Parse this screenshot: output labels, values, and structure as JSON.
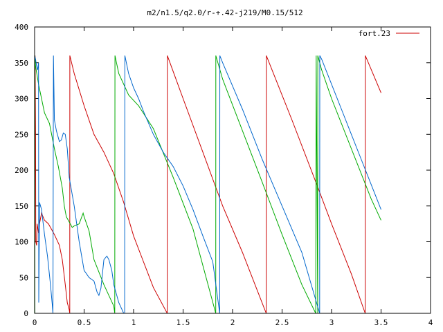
{
  "chart_data": {
    "type": "line",
    "title": "m2/n1.5/q2.0/r-+.42-j219/M0.15/512",
    "xlabel": "",
    "ylabel": "",
    "xlim": [
      0,
      4
    ],
    "ylim": [
      0,
      400
    ],
    "grid": false,
    "legend": {
      "position": "top-right",
      "entries": [
        "fort.23"
      ]
    },
    "x_ticks": [
      0,
      0.5,
      1,
      1.5,
      2,
      2.5,
      3,
      3.5,
      4
    ],
    "x_tick_labels": [
      "0",
      "0.5",
      "1",
      "1.5",
      "2",
      "2.5",
      "3",
      "3.5",
      "4"
    ],
    "y_ticks": [
      0,
      50,
      100,
      150,
      200,
      250,
      300,
      350,
      400
    ],
    "y_tick_labels": [
      "0",
      "50",
      "100",
      "150",
      "200",
      "250",
      "300",
      "350",
      "400"
    ],
    "series": [
      {
        "name": "fort.23",
        "color": "#cc0000",
        "x": [
          0.0,
          0.005,
          0.01,
          0.012,
          0.02,
          0.025,
          0.04,
          0.05,
          0.07,
          0.1,
          0.14,
          0.2,
          0.25,
          0.28,
          0.31,
          0.33,
          0.35,
          0.355,
          0.356,
          0.4,
          0.5,
          0.6,
          0.7,
          0.8,
          0.9,
          1.0,
          1.1,
          1.2,
          1.34,
          1.341,
          1.5,
          1.7,
          1.9,
          2.1,
          2.34,
          2.341,
          2.6,
          2.85,
          3.0,
          3.2,
          3.34,
          3.341,
          3.5
        ],
        "y": [
          180,
          360,
          250,
          100,
          95,
          125,
          112,
          125,
          140,
          130,
          125,
          110,
          95,
          75,
          40,
          15,
          5,
          0,
          360,
          335,
          290,
          250,
          225,
          195,
          155,
          108,
          72,
          36,
          0,
          360,
          300,
          225,
          150,
          85,
          0,
          360,
          270,
          180,
          125,
          55,
          0,
          360,
          308
        ]
      },
      {
        "name": "",
        "color": "#00aa00",
        "x": [
          0.0,
          0.002,
          0.003,
          0.01,
          0.04,
          0.1,
          0.15,
          0.2,
          0.24,
          0.28,
          0.3,
          0.32,
          0.34,
          0.36,
          0.38,
          0.4,
          0.45,
          0.49,
          0.5,
          0.55,
          0.6,
          0.7,
          0.8,
          0.81,
          0.812,
          0.85,
          0.95,
          1.05,
          1.2,
          1.4,
          1.6,
          1.83,
          1.831,
          1.9,
          2.1,
          2.3,
          2.5,
          2.7,
          2.84,
          2.845,
          2.86,
          2.861,
          2.9,
          3.0,
          3.1,
          3.2,
          3.3,
          3.4,
          3.5
        ],
        "y": [
          360,
          0,
          360,
          345,
          320,
          280,
          265,
          230,
          205,
          175,
          150,
          135,
          130,
          125,
          120,
          122,
          125,
          140,
          135,
          115,
          75,
          40,
          10,
          0,
          360,
          335,
          305,
          290,
          258,
          190,
          118,
          0,
          360,
          327,
          255,
          183,
          110,
          40,
          0,
          360,
          0,
          360,
          340,
          300,
          265,
          230,
          195,
          160,
          130
        ]
      },
      {
        "name": "",
        "color": "#0066cc",
        "x": [
          0.0,
          0.01,
          0.02,
          0.03,
          0.04,
          0.042,
          0.05,
          0.07,
          0.1,
          0.13,
          0.16,
          0.18,
          0.185,
          0.19,
          0.2,
          0.22,
          0.25,
          0.27,
          0.29,
          0.31,
          0.33,
          0.35,
          0.4,
          0.45,
          0.5,
          0.55,
          0.6,
          0.63,
          0.65,
          0.67,
          0.7,
          0.73,
          0.75,
          0.78,
          0.8,
          0.85,
          0.9,
          0.91,
          0.912,
          0.95,
          1.0,
          1.05,
          1.1,
          1.2,
          1.3,
          1.4,
          1.5,
          1.6,
          1.7,
          1.8,
          1.87,
          1.871,
          1.9,
          2.1,
          2.3,
          2.5,
          2.7,
          2.88,
          2.881,
          2.9,
          3.0,
          3.1,
          3.2,
          3.3,
          3.4,
          3.5
        ],
        "y": [
          360,
          355,
          345,
          340,
          350,
          15,
          155,
          145,
          110,
          80,
          40,
          10,
          0,
          360,
          270,
          255,
          240,
          242,
          252,
          250,
          230,
          190,
          150,
          100,
          60,
          50,
          45,
          30,
          25,
          35,
          75,
          80,
          75,
          60,
          40,
          15,
          0,
          0,
          360,
          335,
          315,
          300,
          282,
          250,
          225,
          205,
          178,
          145,
          108,
          72,
          0,
          360,
          350,
          285,
          215,
          150,
          85,
          0,
          360,
          355,
          320,
          285,
          250,
          215,
          180,
          145
        ]
      }
    ]
  }
}
